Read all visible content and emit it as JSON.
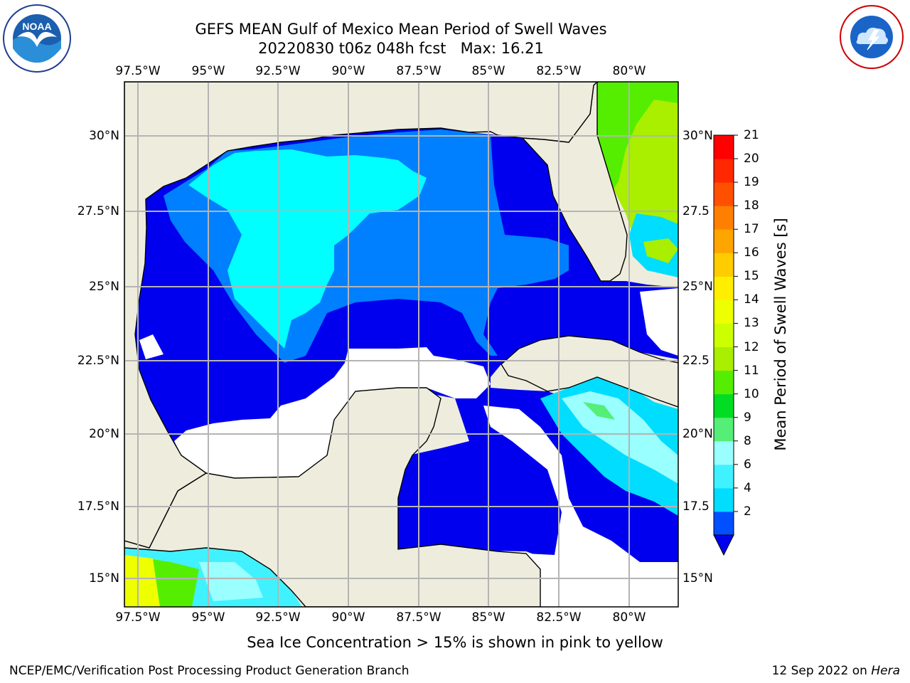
{
  "header": {
    "title_line1": "GEFS MEAN Gulf of Mexico Mean Period of Swell Waves",
    "title_line2": "20220830 t06z 048h fcst   Max: 16.21"
  },
  "logos": {
    "left": {
      "icon": "noaa-logo",
      "text": "NOAA"
    },
    "right": {
      "icon": "nws-logo",
      "text": "NATIONAL WEATHER SERVICE"
    }
  },
  "map": {
    "lon_labels": [
      "97.5°W",
      "95°W",
      "92.5°W",
      "90°W",
      "87.5°W",
      "85°W",
      "82.5°W",
      "80°W"
    ],
    "lat_labels_left": [
      "30°N",
      "27.5°N",
      "25°N",
      "22.5°N",
      "20°N",
      "17.5°N",
      "15°N"
    ],
    "lat_labels_right": [
      "30°N",
      "27.5",
      "25°N",
      "22.5",
      "20°N",
      "17.5",
      "15°N"
    ],
    "land_color": "#eeeddd",
    "grid_color": "#b4b4b4"
  },
  "colorbar": {
    "label": "Mean Period of Swell Waves [s]",
    "ticks": [
      "21",
      "20",
      "19",
      "18",
      "17",
      "16",
      "15",
      "14",
      "13",
      "12",
      "11",
      "10",
      "9",
      "8",
      "6",
      "4",
      "2"
    ],
    "bins": [
      {
        "lo": 2,
        "hi": 4,
        "color": "#0050ff"
      },
      {
        "lo": 4,
        "hi": 6,
        "color": "#00ddff"
      },
      {
        "lo": 6,
        "hi": 8,
        "color": "#40f2ff"
      },
      {
        "lo": 8,
        "hi": 9,
        "color": "#99ffff"
      },
      {
        "lo": 9,
        "hi": 10,
        "color": "#55ee77"
      },
      {
        "lo": 10,
        "hi": 11,
        "color": "#00dd22"
      },
      {
        "lo": 11,
        "hi": 12,
        "color": "#55ee00"
      },
      {
        "lo": 12,
        "hi": 13,
        "color": "#aaee00"
      },
      {
        "lo": 13,
        "hi": 14,
        "color": "#ccff00"
      },
      {
        "lo": 14,
        "hi": 15,
        "color": "#eeff00"
      },
      {
        "lo": 15,
        "hi": 16,
        "color": "#ffee00"
      },
      {
        "lo": 16,
        "hi": 17,
        "color": "#ffcc00"
      },
      {
        "lo": 17,
        "hi": 18,
        "color": "#ffa500"
      },
      {
        "lo": 18,
        "hi": 19,
        "color": "#ff8000"
      },
      {
        "lo": 19,
        "hi": 20,
        "color": "#ff5000"
      },
      {
        "lo": 20,
        "hi": 21,
        "color": "#ff2800"
      },
      {
        "lo": 21,
        "hi": 22,
        "color": "#ff0000"
      }
    ],
    "under_color": "#0000ee"
  },
  "caption": "Sea Ice Concentration > 15% is shown in pink to yellow",
  "footer": {
    "left": "NCEP/EMC/Verification Post Processing Product Generation Branch",
    "right_prefix": "12 Sep 2022 on ",
    "right_italic": "Hera"
  }
}
